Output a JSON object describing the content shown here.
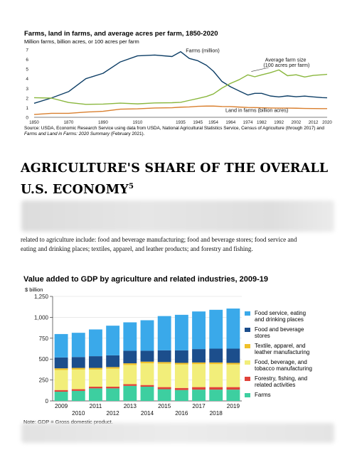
{
  "chart_data": [
    {
      "type": "line",
      "title": "Farms, land in farms, and average acres per farm, 1850-2020",
      "subtitle": "Million farms, billion acres, or 100 acres per farm",
      "x": [
        1850,
        1860,
        1870,
        1880,
        1890,
        1900,
        1910,
        1920,
        1930,
        1935,
        1940,
        1945,
        1950,
        1954,
        1959,
        1964,
        1969,
        1974,
        1978,
        1982,
        1987,
        1992,
        1997,
        2002,
        2007,
        2012,
        2017,
        2020
      ],
      "xticks": [
        1850,
        1870,
        1890,
        1910,
        1935,
        1945,
        1954,
        1964,
        1974,
        1982,
        1992,
        2002,
        2012,
        2020
      ],
      "ylim": [
        0,
        7
      ],
      "yticks": [
        0,
        1,
        2,
        3,
        4,
        5,
        6,
        7
      ],
      "series": [
        {
          "name": "Farms (million)",
          "values": [
            1.45,
            2.0,
            2.66,
            4.0,
            4.56,
            5.74,
            6.37,
            6.45,
            6.3,
            6.8,
            6.1,
            5.86,
            5.39,
            4.78,
            3.71,
            3.16,
            2.73,
            2.31,
            2.48,
            2.48,
            2.21,
            2.11,
            2.22,
            2.13,
            2.2,
            2.11,
            2.04,
            2.02
          ],
          "color": "#0d3e66"
        },
        {
          "name": "Average farm size (100 acres per farm)",
          "values": [
            2.03,
            1.99,
            1.53,
            1.34,
            1.37,
            1.47,
            1.39,
            1.49,
            1.51,
            1.55,
            1.75,
            1.95,
            2.16,
            2.42,
            3.03,
            3.52,
            3.9,
            4.4,
            4.2,
            4.4,
            4.62,
            4.91,
            4.31,
            4.41,
            4.18,
            4.34,
            4.41,
            4.45
          ],
          "color": "#8ab73e"
        },
        {
          "name": "Land in farms (billion acres)",
          "values": [
            0.29,
            0.41,
            0.41,
            0.54,
            0.62,
            0.84,
            0.88,
            0.96,
            0.99,
            1.05,
            1.07,
            1.14,
            1.16,
            1.16,
            1.12,
            1.11,
            1.06,
            1.02,
            1.01,
            0.99,
            0.96,
            0.95,
            0.95,
            0.94,
            0.92,
            0.91,
            0.9,
            0.9
          ],
          "color": "#d97f2e"
        }
      ],
      "labels": {
        "farms": "Farms (million)",
        "avg1": "Average farm size",
        "avg2": "(100 acres per farm)",
        "land": "Land in farms (billion acres)"
      },
      "source_lead": "Source: USDA, Economic Research Service using data from USDA, National Agricultural Statistics Service, Census of Agriculture (through 2017) and ",
      "source_italic": "Farms and Land in Farms: 2020 Summary",
      "source_tail": " (February 2021)."
    },
    {
      "type": "bar",
      "title": "Value added to GDP by agriculture and related industries, 2009-19",
      "unit": "$ billion",
      "categories": [
        "2009",
        "2010",
        "2011",
        "2012",
        "2013",
        "2014",
        "2015",
        "2016",
        "2017",
        "2018",
        "2019"
      ],
      "ylim": [
        0,
        1250
      ],
      "yticks": [
        0,
        250,
        500,
        750,
        "1,000",
        "1,250"
      ],
      "series": [
        {
          "name": "Farms",
          "color": "#3dcfa0",
          "values": [
            110,
            120,
            150,
            150,
            180,
            170,
            140,
            130,
            135,
            135,
            135
          ]
        },
        {
          "name": "Forestry, fishing, and related activities",
          "color": "#e0433a",
          "values": [
            20,
            20,
            20,
            20,
            20,
            20,
            25,
            25,
            30,
            30,
            30
          ]
        },
        {
          "name": "Food, beverage, and tobacco manufacturing",
          "color": "#f2ee7a",
          "values": [
            240,
            235,
            205,
            215,
            230,
            260,
            280,
            280,
            275,
            275,
            270
          ]
        },
        {
          "name": "Textile, apparel, and leather manufacturing",
          "color": "#f0c12a",
          "values": [
            20,
            20,
            20,
            20,
            20,
            20,
            20,
            20,
            20,
            20,
            20
          ]
        },
        {
          "name": "Food and beverage stores",
          "color": "#1c4e8c",
          "values": [
            130,
            130,
            140,
            140,
            150,
            130,
            140,
            150,
            160,
            165,
            170
          ]
        },
        {
          "name": "Food service, eating and drinking places",
          "color": "#3aa9ea",
          "values": [
            280,
            290,
            320,
            355,
            340,
            365,
            410,
            425,
            450,
            465,
            480
          ]
        }
      ],
      "legend": [
        {
          "line1": "Food service, eating",
          "line2": "and drinking places",
          "color": "#3aa9ea"
        },
        {
          "line1": "Food and beverage",
          "line2": "stores",
          "color": "#1c4e8c"
        },
        {
          "line1": "Textile, apparel, and",
          "line2": "leather manufacturing",
          "color": "#f0c12a"
        },
        {
          "line1": "Food, beverage, and",
          "line2": "tobacco manufacturing",
          "color": "#f2ee7a"
        },
        {
          "line1": "Forestry, fishing, and",
          "line2": "related activities",
          "color": "#e0433a"
        },
        {
          "line1": "Farms",
          "line2": "",
          "color": "#3dcfa0"
        }
      ],
      "note": "Note: GDP = Gross domestic product."
    }
  ],
  "section": {
    "heading": "AGRICULTURE'S SHARE OF THE OVERALL U.S. ECONOMY",
    "footnote_ref": "5",
    "partial_line": "related to agriculture include: food and beverage manufacturing; food and beverage stores; food service and",
    "last_line": "eating and drinking places; textiles, apparel, and leather products; and forestry and fishing."
  }
}
